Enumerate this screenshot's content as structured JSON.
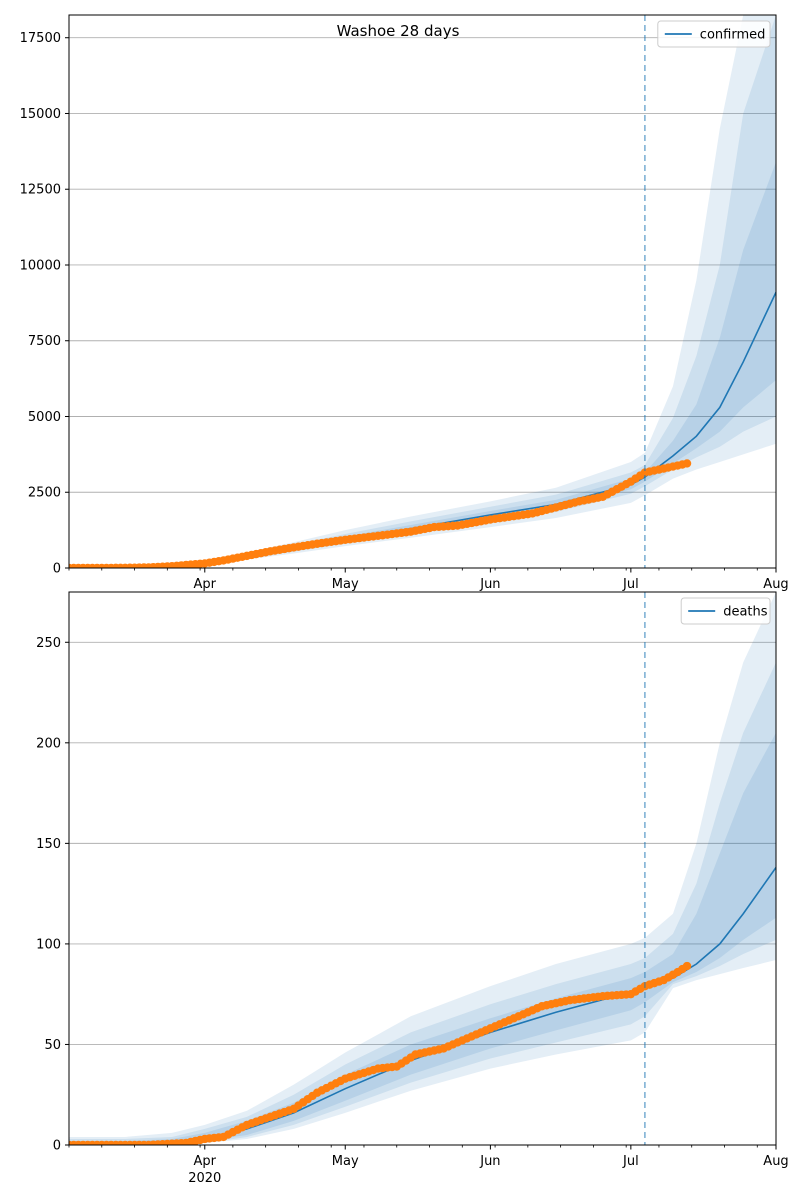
{
  "colors": {
    "model_line": "#1f77b4",
    "observed": "#ff7f0e",
    "band": "#1f77b4",
    "grid": "#b0b0b0",
    "vline": "#1f77b4"
  },
  "chart_data": [
    {
      "type": "line",
      "title": "Washoe 28 days",
      "legend": [
        "confirmed"
      ],
      "legend_position": "top-right",
      "grid": "y",
      "xlim": [
        "2020-03-03",
        "2020-08-01"
      ],
      "ylim": [
        0,
        18250
      ],
      "y_ticks": [
        0,
        2500,
        5000,
        7500,
        10000,
        12500,
        15000,
        17500
      ],
      "x_tick_labels": [
        "Apr",
        "May",
        "Jun",
        "Jul",
        "Aug"
      ],
      "x_tick_sublabel": "2020",
      "forecast_start": "2020-07-04",
      "observed_end": "2020-07-13",
      "series": [
        {
          "name": "confirmed",
          "x": [
            "2020-03-03",
            "2020-03-15",
            "2020-03-25",
            "2020-04-01",
            "2020-04-10",
            "2020-04-20",
            "2020-05-01",
            "2020-05-15",
            "2020-06-01",
            "2020-06-15",
            "2020-07-01",
            "2020-07-04",
            "2020-07-10",
            "2020-07-15",
            "2020-07-20",
            "2020-07-25",
            "2020-08-01"
          ],
          "values": [
            0,
            10,
            50,
            150,
            380,
            650,
            950,
            1300,
            1750,
            2100,
            2750,
            3000,
            3700,
            4350,
            5300,
            6800,
            9100
          ]
        }
      ],
      "observed_values": {
        "x": [
          "2020-03-03",
          "2020-03-15",
          "2020-03-20",
          "2020-03-25",
          "2020-04-01",
          "2020-04-05",
          "2020-04-10",
          "2020-04-15",
          "2020-04-20",
          "2020-04-25",
          "2020-05-01",
          "2020-05-10",
          "2020-05-15",
          "2020-05-20",
          "2020-05-25",
          "2020-06-01",
          "2020-06-10",
          "2020-06-15",
          "2020-06-20",
          "2020-06-25",
          "2020-07-01",
          "2020-07-04",
          "2020-07-08",
          "2020-07-13"
        ],
        "values": [
          0,
          5,
          20,
          60,
          150,
          250,
          400,
          550,
          680,
          800,
          930,
          1100,
          1200,
          1350,
          1400,
          1600,
          1800,
          2000,
          2200,
          2350,
          2850,
          3150,
          3280,
          3450
        ]
      },
      "uncertainty_bands": [
        {
          "lower": [
            0,
            5,
            30,
            100,
            280,
            480,
            720,
            1000,
            1350,
            1650,
            2150,
            2400,
            2950,
            3250,
            3500,
            3750,
            4100
          ],
          "upper": [
            5,
            20,
            90,
            220,
            520,
            850,
            1250,
            1700,
            2200,
            2650,
            3500,
            3800,
            6000,
            9500,
            14500,
            18250,
            18250
          ]
        },
        {
          "lower": [
            0,
            6,
            35,
            120,
            310,
            540,
            810,
            1120,
            1520,
            1850,
            2450,
            2700,
            3250,
            3650,
            4000,
            4500,
            5000
          ],
          "upper": [
            3,
            16,
            75,
            190,
            460,
            770,
            1120,
            1540,
            2020,
            2420,
            3150,
            3400,
            4950,
            7000,
            10000,
            15000,
            18250
          ]
        },
        {
          "lower": [
            0,
            7,
            40,
            135,
            340,
            590,
            870,
            1200,
            1630,
            1970,
            2600,
            2850,
            3450,
            3950,
            4500,
            5300,
            6200
          ],
          "upper": [
            2,
            13,
            62,
            170,
            420,
            710,
            1040,
            1420,
            1880,
            2250,
            2950,
            3150,
            4200,
            5400,
            7600,
            10500,
            13400
          ]
        }
      ]
    },
    {
      "type": "line",
      "title": "",
      "legend": [
        "deaths"
      ],
      "legend_position": "top-right",
      "grid": "y",
      "xlim": [
        "2020-03-03",
        "2020-08-01"
      ],
      "ylim": [
        0,
        275
      ],
      "y_ticks": [
        0,
        50,
        100,
        150,
        200,
        250
      ],
      "x_tick_labels": [
        "Apr",
        "May",
        "Jun",
        "Jul",
        "Aug"
      ],
      "x_tick_sublabel": "2020",
      "forecast_start": "2020-07-04",
      "observed_end": "2020-07-13",
      "series": [
        {
          "name": "deaths",
          "x": [
            "2020-03-03",
            "2020-03-15",
            "2020-03-25",
            "2020-04-01",
            "2020-04-10",
            "2020-04-20",
            "2020-05-01",
            "2020-05-15",
            "2020-06-01",
            "2020-06-15",
            "2020-07-01",
            "2020-07-04",
            "2020-07-10",
            "2020-07-15",
            "2020-07-20",
            "2020-07-25",
            "2020-08-01"
          ],
          "values": [
            0,
            0.5,
            1,
            3,
            8,
            16,
            28,
            42,
            56,
            66,
            76,
            79,
            83,
            90,
            100,
            115,
            138
          ]
        }
      ],
      "observed_values": {
        "x": [
          "2020-03-03",
          "2020-03-20",
          "2020-03-28",
          "2020-04-01",
          "2020-04-05",
          "2020-04-10",
          "2020-04-15",
          "2020-04-20",
          "2020-04-25",
          "2020-05-01",
          "2020-05-08",
          "2020-05-12",
          "2020-05-16",
          "2020-05-22",
          "2020-05-26",
          "2020-06-01",
          "2020-06-06",
          "2020-06-12",
          "2020-06-18",
          "2020-06-25",
          "2020-07-01",
          "2020-07-04",
          "2020-07-08",
          "2020-07-11",
          "2020-07-13"
        ],
        "values": [
          0,
          0,
          1,
          3,
          4,
          10,
          14,
          18,
          26,
          33,
          38,
          39,
          45,
          48,
          52,
          58,
          63,
          69,
          72,
          74,
          75,
          79,
          82,
          86,
          89
        ]
      },
      "uncertainty_bands": [
        {
          "lower": [
            0,
            0,
            0,
            1,
            3,
            8,
            16,
            27,
            38,
            45,
            52,
            56,
            78,
            82,
            85,
            88,
            92
          ],
          "upper": [
            4,
            4,
            6,
            10,
            17,
            30,
            46,
            64,
            79,
            90,
            100,
            103,
            115,
            150,
            200,
            240,
            275
          ]
        },
        {
          "lower": [
            0,
            0,
            0,
            1,
            4,
            10,
            19,
            31,
            43,
            51,
            60,
            64,
            80,
            84,
            89,
            95,
            102
          ],
          "upper": [
            3,
            3,
            4,
            8,
            14,
            25,
            40,
            56,
            70,
            80,
            90,
            93,
            105,
            130,
            170,
            205,
            240
          ]
        },
        {
          "lower": [
            0,
            0,
            1,
            2,
            5,
            12,
            22,
            35,
            48,
            57,
            67,
            71,
            81,
            86,
            93,
            102,
            113
          ],
          "upper": [
            2,
            2,
            3,
            6,
            12,
            21,
            35,
            50,
            63,
            73,
            83,
            86,
            95,
            115,
            145,
            175,
            205
          ]
        }
      ]
    }
  ]
}
